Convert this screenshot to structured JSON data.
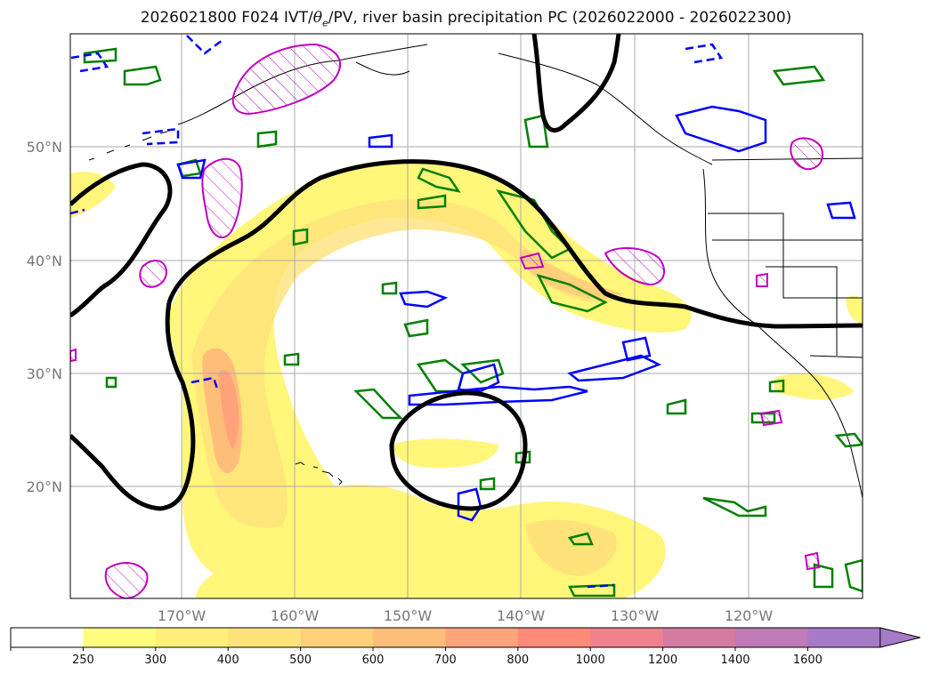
{
  "title": {
    "run": "2026021800",
    "forecast": "F024",
    "fields_prefix": "IVT/",
    "theta_symbol": "θ",
    "theta_subscript": "e",
    "fields_suffix": "/PV, river basin precipitation PC",
    "period": "(2026022000 - 2026022300)"
  },
  "map": {
    "lat_labels": [
      "50°N",
      "40°N",
      "30°N",
      "20°N"
    ],
    "lon_labels": [
      "170°W",
      "160°W",
      "150°W",
      "140°W",
      "130°W",
      "120°W"
    ],
    "grid": true
  },
  "colorbar": {
    "ticks": [
      "250",
      "300",
      "400",
      "500",
      "600",
      "700",
      "800",
      "1000",
      "1200",
      "1400",
      "1600"
    ],
    "colors": [
      "#ffffff",
      "#fffc7e",
      "#fff07a",
      "#ffe27a",
      "#ffd07a",
      "#ffbd7a",
      "#ffa37a",
      "#ff8a7a",
      "#f0808c",
      "#d57aa0",
      "#c07ab5",
      "#a77ac8"
    ],
    "extend": "max"
  },
  "legend_colors": {
    "ivt_fill": "#fff27a",
    "theta_e_contour": "#000000",
    "pv_contour_green": "#008000",
    "pv_contour_blue": "#0000ff",
    "precip_contour_magenta": "#c000c0"
  }
}
